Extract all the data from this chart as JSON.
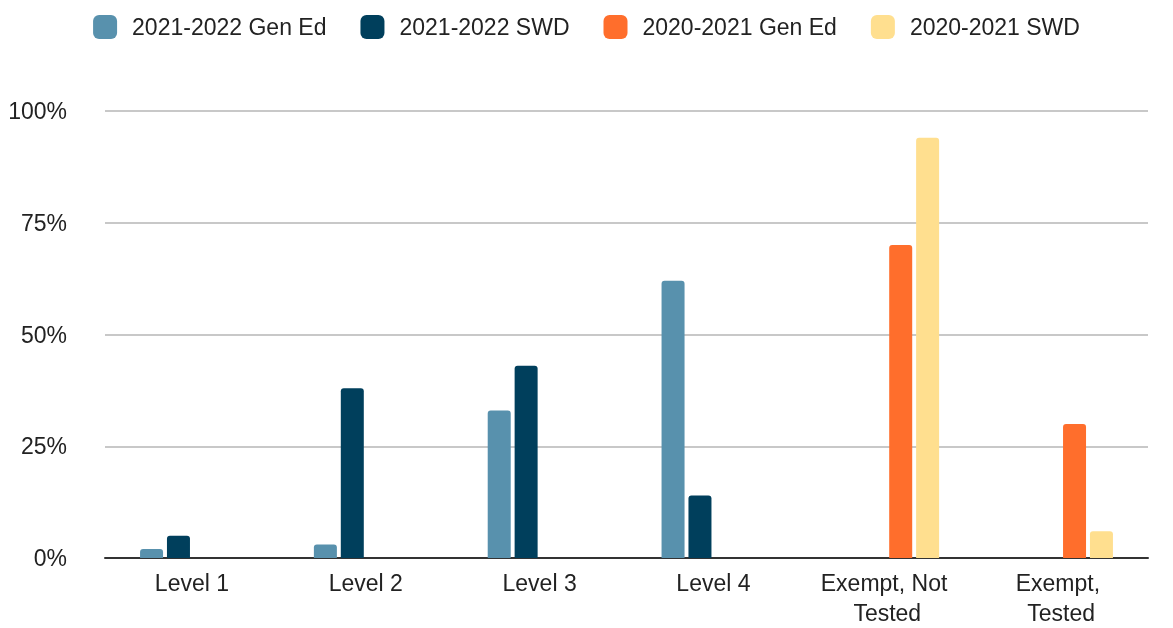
{
  "chart_data": {
    "type": "bar",
    "categories": [
      "Level 1",
      "Level 2",
      "Level 3",
      "Level 4",
      "Exempt, Not Tested",
      "Exempt, Tested"
    ],
    "series": [
      {
        "name": "2021-2022 Gen Ed",
        "color": "#5891ad",
        "values": [
          2,
          3,
          33,
          62,
          null,
          null
        ]
      },
      {
        "name": "2021-2022 SWD",
        "color": "#003f5c",
        "values": [
          5,
          38,
          43,
          14,
          null,
          null
        ]
      },
      {
        "name": "2020-2021 Gen Ed",
        "color": "#ff6e2c",
        "values": [
          null,
          null,
          null,
          null,
          70,
          30
        ]
      },
      {
        "name": "2020-2021 SWD",
        "color": "#ffdf8f",
        "values": [
          null,
          null,
          null,
          null,
          94,
          6
        ]
      }
    ],
    "ylim": [
      0,
      100
    ],
    "yticks": [
      {
        "value": 0,
        "label": "0%"
      },
      {
        "value": 25,
        "label": "25%"
      },
      {
        "value": 50,
        "label": "50%"
      },
      {
        "value": 75,
        "label": "75%"
      },
      {
        "value": 100,
        "label": "100%"
      }
    ],
    "grid": "y",
    "legend": "top"
  }
}
